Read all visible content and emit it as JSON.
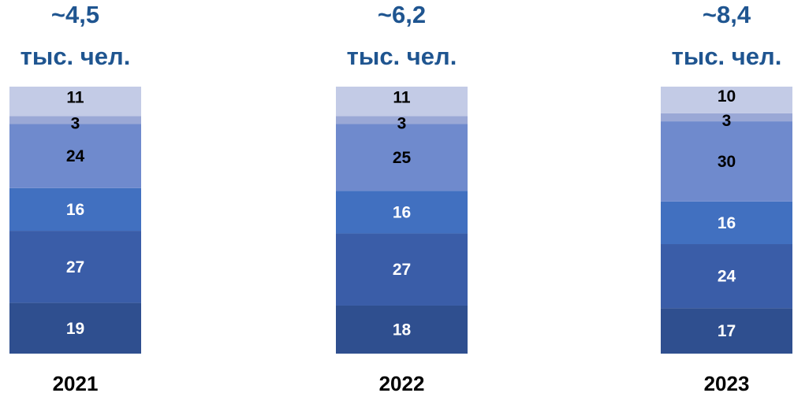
{
  "chart_data": {
    "type": "bar",
    "stacked": true,
    "normalized": true,
    "categories": [
      "2021",
      "2022",
      "2023"
    ],
    "totals": [
      "~4,5",
      "~6,2",
      "~8,4"
    ],
    "total_unit": "тыс. чел.",
    "segments_bottom_to_top": [
      {
        "values": [
          19,
          18,
          17
        ],
        "color": "#2f4f8f",
        "label_color": "#ffffff"
      },
      {
        "values": [
          27,
          27,
          24
        ],
        "color": "#3a5da8",
        "label_color": "#ffffff"
      },
      {
        "values": [
          16,
          16,
          16
        ],
        "color": "#4170c0",
        "label_color": "#ffffff"
      },
      {
        "values": [
          24,
          25,
          30
        ],
        "color": "#6f8acd",
        "label_color": "#000000"
      },
      {
        "values": [
          3,
          3,
          3
        ],
        "color": "#9aa8d6",
        "label_color": "#000000"
      },
      {
        "values": [
          11,
          11,
          10
        ],
        "color": "#c3cbe6",
        "label_color": "#000000"
      }
    ],
    "grid": false,
    "legend": "none"
  }
}
